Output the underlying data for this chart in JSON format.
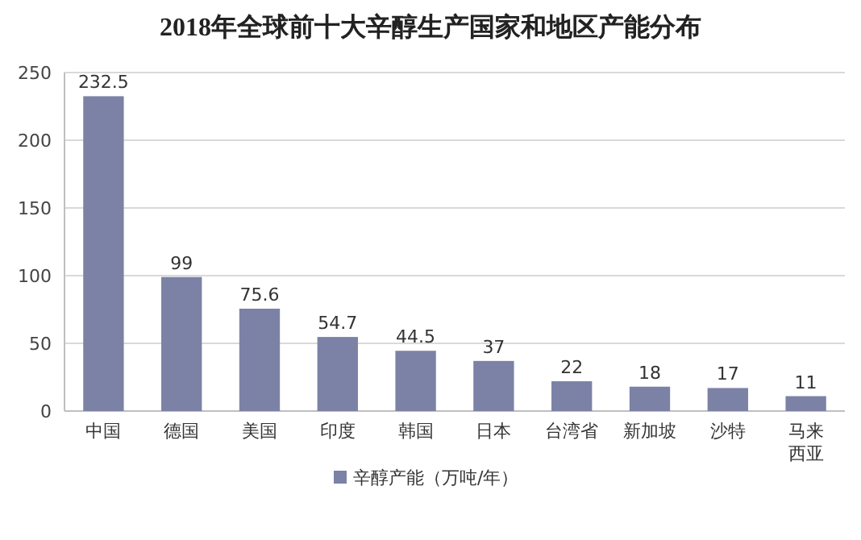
{
  "chart_data": {
    "type": "bar",
    "title": "2018年全球前十大辛醇生产国家和地区产能分布",
    "categories": [
      "中国",
      "德国",
      "美国",
      "印度",
      "韩国",
      "日本",
      "台湾省",
      "新加坡",
      "沙特",
      "马来西亚"
    ],
    "series": [
      {
        "name": "辛醇产能（万吨/年）",
        "color": "#7b82a6",
        "values": [
          232.5,
          99,
          75.6,
          54.7,
          44.5,
          37,
          22,
          18,
          17,
          11
        ]
      }
    ],
    "ylim": [
      0,
      250
    ],
    "yticks": [
      0,
      50,
      100,
      150,
      200,
      250
    ],
    "grid": "y",
    "legend": "bottom",
    "data_labels": true
  }
}
